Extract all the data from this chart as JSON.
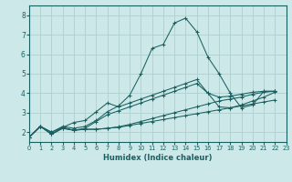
{
  "xlabel": "Humidex (Indice chaleur)",
  "xlim": [
    0,
    23
  ],
  "ylim": [
    1.5,
    8.5
  ],
  "xticks": [
    0,
    1,
    2,
    3,
    4,
    5,
    6,
    7,
    8,
    9,
    10,
    11,
    12,
    13,
    14,
    15,
    16,
    17,
    18,
    19,
    20,
    21,
    22,
    23
  ],
  "yticks": [
    2,
    3,
    4,
    5,
    6,
    7,
    8
  ],
  "bg_color": "#cde8e8",
  "grid_color": "#aed0d0",
  "line_color": "#1a6060",
  "lines": [
    {
      "x": [
        0,
        1,
        2,
        3,
        4,
        5,
        6,
        7,
        8,
        9,
        10,
        11,
        12,
        13,
        14,
        15,
        16,
        17,
        18,
        19,
        20,
        21,
        22
      ],
      "y": [
        1.75,
        2.3,
        1.9,
        2.2,
        2.1,
        2.15,
        2.15,
        2.2,
        2.25,
        2.35,
        2.45,
        2.55,
        2.65,
        2.75,
        2.85,
        2.95,
        3.05,
        3.15,
        3.25,
        3.35,
        3.45,
        3.55,
        3.65
      ]
    },
    {
      "x": [
        0,
        1,
        2,
        3,
        4,
        5,
        6,
        7,
        8,
        9,
        10,
        11,
        12,
        13,
        14,
        15,
        16,
        17,
        18,
        19,
        20,
        21,
        22
      ],
      "y": [
        1.75,
        2.3,
        1.9,
        2.2,
        2.1,
        2.2,
        2.55,
        2.9,
        3.1,
        3.3,
        3.5,
        3.7,
        3.9,
        4.1,
        4.3,
        4.5,
        4.0,
        3.3,
        3.25,
        3.4,
        3.6,
        3.8,
        4.05
      ]
    },
    {
      "x": [
        0,
        1,
        2,
        3,
        4,
        5,
        6,
        7,
        8,
        9,
        10,
        11,
        12,
        13,
        14,
        15,
        16,
        17,
        18,
        19,
        20,
        21,
        22
      ],
      "y": [
        1.75,
        2.3,
        2.0,
        2.25,
        2.5,
        2.6,
        3.05,
        3.5,
        3.3,
        3.5,
        3.7,
        3.9,
        4.1,
        4.3,
        4.5,
        4.7,
        4.0,
        3.8,
        3.85,
        3.95,
        4.05,
        4.1,
        4.1
      ]
    },
    {
      "x": [
        0,
        1,
        2,
        3,
        4,
        5,
        6,
        7,
        8,
        9,
        10,
        11,
        12,
        13,
        14,
        15,
        16,
        17,
        18,
        19,
        20,
        21,
        22
      ],
      "y": [
        1.75,
        2.3,
        2.0,
        2.3,
        2.2,
        2.3,
        2.6,
        3.05,
        3.35,
        3.9,
        5.0,
        6.3,
        6.5,
        7.6,
        7.85,
        7.15,
        5.85,
        5.0,
        4.0,
        3.25,
        3.4,
        4.1,
        4.1
      ]
    },
    {
      "x": [
        0,
        1,
        2,
        3,
        4,
        5,
        6,
        7,
        8,
        9,
        10,
        11,
        12,
        13,
        14,
        15,
        16,
        17,
        18,
        19,
        20,
        21,
        22
      ],
      "y": [
        1.75,
        2.3,
        1.9,
        2.25,
        2.1,
        2.15,
        2.15,
        2.2,
        2.28,
        2.4,
        2.55,
        2.7,
        2.85,
        3.0,
        3.15,
        3.3,
        3.45,
        3.6,
        3.7,
        3.8,
        3.95,
        4.05,
        4.1
      ]
    }
  ]
}
